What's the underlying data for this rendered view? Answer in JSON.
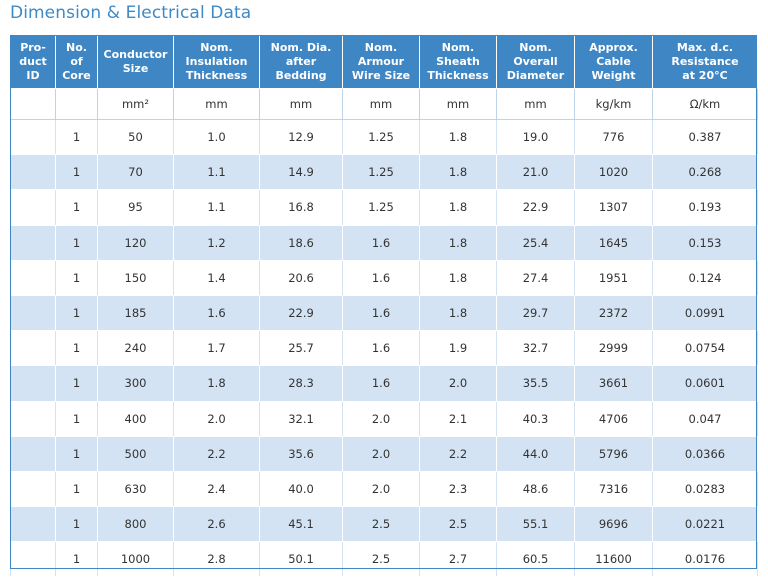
{
  "title": "Dimension & Electrical Data",
  "headers": [
    "Pro-\nduct\nID",
    "No. of\nCore",
    "Conductor\nSize",
    "Nom.\nInsulation\nThickness",
    "Nom. Dia.\nafter\nBedding",
    "Nom.\nArmour\nWire Size",
    "Nom.\nSheath\nThickness",
    "Nom.\nOverall\nDiameter",
    "Approx.\nCable\nWeight",
    "Max. d.c.\nResistance\nat 20°C"
  ],
  "units": [
    "",
    "",
    "mm²",
    "mm",
    "mm",
    "mm",
    "mm",
    "mm",
    "kg/km",
    "Ω/km"
  ],
  "rows": [
    [
      "",
      "1",
      "50",
      "1.0",
      "12.9",
      "1.25",
      "1.8",
      "19.0",
      "776",
      "0.387"
    ],
    [
      "",
      "1",
      "70",
      "1.1",
      "14.9",
      "1.25",
      "1.8",
      "21.0",
      "1020",
      "0.268"
    ],
    [
      "",
      "1",
      "95",
      "1.1",
      "16.8",
      "1.25",
      "1.8",
      "22.9",
      "1307",
      "0.193"
    ],
    [
      "",
      "1",
      "120",
      "1.2",
      "18.6",
      "1.6",
      "1.8",
      "25.4",
      "1645",
      "0.153"
    ],
    [
      "",
      "1",
      "150",
      "1.4",
      "20.6",
      "1.6",
      "1.8",
      "27.4",
      "1951",
      "0.124"
    ],
    [
      "",
      "1",
      "185",
      "1.6",
      "22.9",
      "1.6",
      "1.8",
      "29.7",
      "2372",
      "0.0991"
    ],
    [
      "",
      "1",
      "240",
      "1.7",
      "25.7",
      "1.6",
      "1.9",
      "32.7",
      "2999",
      "0.0754"
    ],
    [
      "",
      "1",
      "300",
      "1.8",
      "28.3",
      "1.6",
      "2.0",
      "35.5",
      "3661",
      "0.0601"
    ],
    [
      "",
      "1",
      "400",
      "2.0",
      "32.1",
      "2.0",
      "2.1",
      "40.3",
      "4706",
      "0.047"
    ],
    [
      "",
      "1",
      "500",
      "2.2",
      "35.6",
      "2.0",
      "2.2",
      "44.0",
      "5796",
      "0.0366"
    ],
    [
      "",
      "1",
      "630",
      "2.4",
      "40.0",
      "2.0",
      "2.3",
      "48.6",
      "7316",
      "0.0283"
    ],
    [
      "",
      "1",
      "800",
      "2.6",
      "45.1",
      "2.5",
      "2.5",
      "55.1",
      "9696",
      "0.0221"
    ],
    [
      "",
      "1",
      "1000",
      "2.8",
      "50.1",
      "2.5",
      "2.7",
      "60.5",
      "11600",
      "0.0176"
    ]
  ],
  "colors": {
    "header_bg": "#3f86c4",
    "stripe": "#d4e3f3",
    "title": "#3d8ac6"
  }
}
